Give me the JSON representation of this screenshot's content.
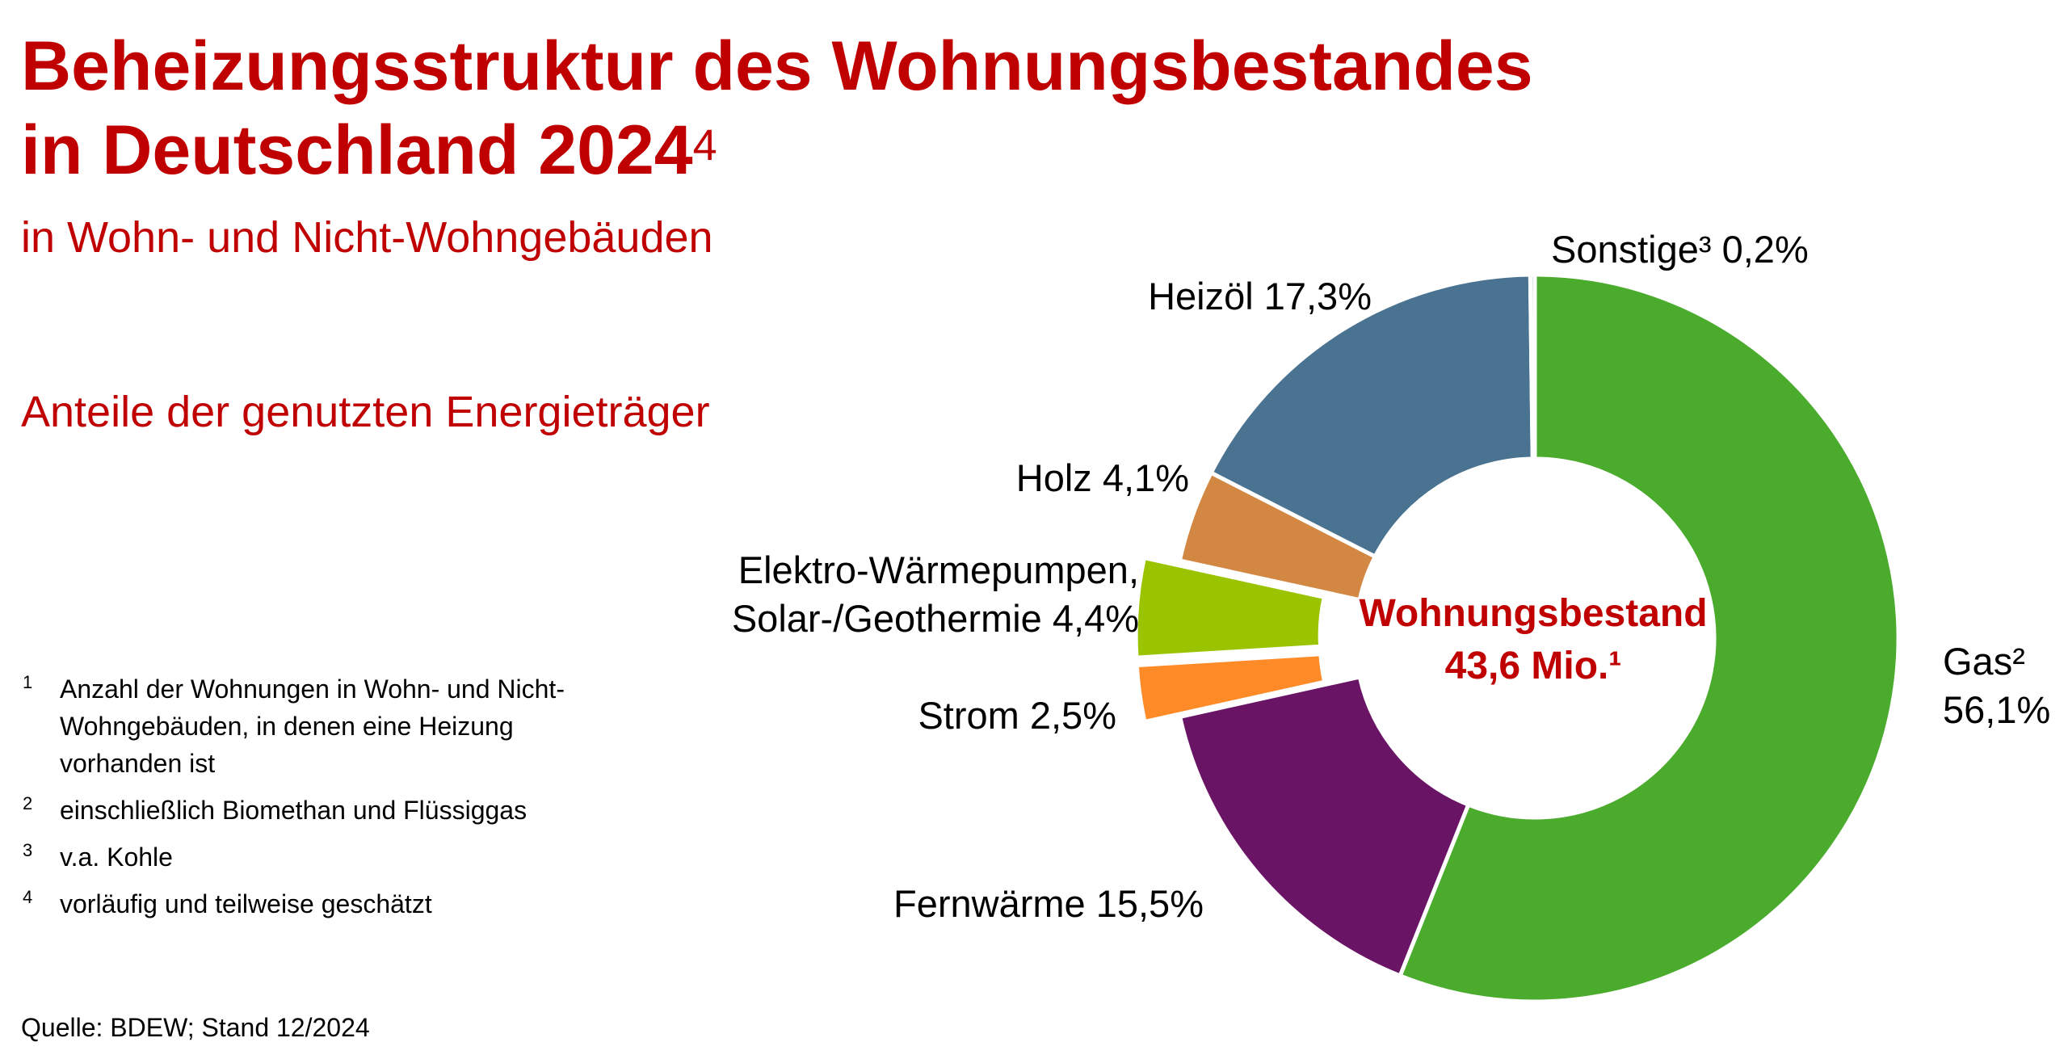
{
  "title": {
    "line1": "Beheizungsstruktur des Wohnungsbestandes",
    "line2": "in Deutschland 2024",
    "sup": "4"
  },
  "subtitle": "in Wohn- und Nicht-Wohngebäuden",
  "section_label": "Anteile der genutzten Energieträger",
  "footnotes": [
    {
      "num": "1",
      "text": "Anzahl der Wohnungen in Wohn- und Nicht-Wohngebäuden, in denen eine Heizung vorhanden ist"
    },
    {
      "num": "2",
      "text": "einschließlich Biomethan und Flüssiggas"
    },
    {
      "num": "3",
      "text": "v.a. Kohle"
    },
    {
      "num": "4",
      "text": "vorläufig und teilweise geschätzt"
    }
  ],
  "source": "Quelle:  BDEW; Stand 12/2024",
  "chart_data": {
    "type": "pie",
    "style": "donut",
    "center_label": {
      "line1": "Wohnungsbestand",
      "line2": "43,6 Mio.¹"
    },
    "slices": [
      {
        "key": "gas",
        "label_lines": [
          "Gas²",
          "56,1%"
        ],
        "value": 56.1,
        "color": "#4aab2c",
        "exploded": false
      },
      {
        "key": "fernwaerme",
        "label_lines": [
          "Fernwärme 15,5%"
        ],
        "value": 15.5,
        "color": "#6a1466",
        "exploded": false
      },
      {
        "key": "strom",
        "label_lines": [
          "Strom 2,5%"
        ],
        "value": 2.5,
        "color": "#ff8a28",
        "exploded": true
      },
      {
        "key": "waermepumpen",
        "label_lines": [
          "Elektro-Wärmepumpen,",
          "Solar-/Geothermie 4,4%"
        ],
        "value": 4.4,
        "color": "#9bc400",
        "exploded": true
      },
      {
        "key": "holz",
        "label_lines": [
          "Holz 4,1%"
        ],
        "value": 4.1,
        "color": "#d28842",
        "exploded": false
      },
      {
        "key": "heizoel",
        "label_lines": [
          "Heizöl 17,3%"
        ],
        "value": 17.3,
        "color": "#4a7391",
        "exploded": false
      },
      {
        "key": "sonstige",
        "label_lines": [
          "Sonstige³ 0,2%"
        ],
        "value": 0.2,
        "color": "#bfc7d5",
        "exploded": false
      }
    ]
  }
}
